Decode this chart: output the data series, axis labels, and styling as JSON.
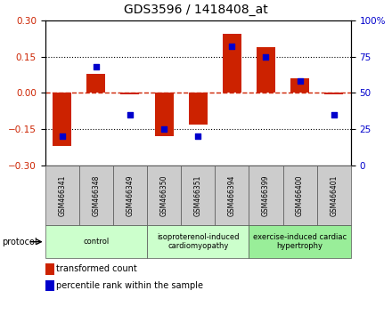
{
  "title": "GDS3596 / 1418408_at",
  "samples": [
    "GSM466341",
    "GSM466348",
    "GSM466349",
    "GSM466350",
    "GSM466351",
    "GSM466394",
    "GSM466399",
    "GSM466400",
    "GSM466401"
  ],
  "transformed_count": [
    -0.22,
    0.08,
    -0.005,
    -0.18,
    -0.13,
    0.245,
    0.19,
    0.06,
    -0.005
  ],
  "percentile_rank": [
    20,
    68,
    35,
    25,
    20,
    82,
    75,
    58,
    35
  ],
  "ylim_left": [
    -0.3,
    0.3
  ],
  "ylim_right": [
    0,
    100
  ],
  "yticks_left": [
    -0.3,
    -0.15,
    0,
    0.15,
    0.3
  ],
  "yticks_right": [
    0,
    25,
    50,
    75,
    100
  ],
  "bar_color": "#CC2200",
  "dot_color": "#0000CC",
  "zero_line_color": "#CC2200",
  "groups": [
    {
      "label": "control",
      "start": 0,
      "end": 3,
      "color": "#ccffcc"
    },
    {
      "label": "isoproterenol-induced\ncardiomyopathy",
      "start": 3,
      "end": 6,
      "color": "#ccffcc"
    },
    {
      "label": "exercise-induced cardiac\nhypertrophy",
      "start": 6,
      "end": 9,
      "color": "#99ee99"
    }
  ],
  "protocol_label": "protocol",
  "legend_bar_label": "transformed count",
  "legend_dot_label": "percentile rank within the sample",
  "background_color": "#ffffff",
  "tick_label_color_left": "#CC2200",
  "tick_label_color_right": "#0000CC",
  "sample_box_color": "#cccccc",
  "title_fontsize": 10,
  "axis_fontsize": 7.5,
  "sample_fontsize": 5.5,
  "group_fontsize": 6,
  "legend_fontsize": 7,
  "protocol_fontsize": 7
}
